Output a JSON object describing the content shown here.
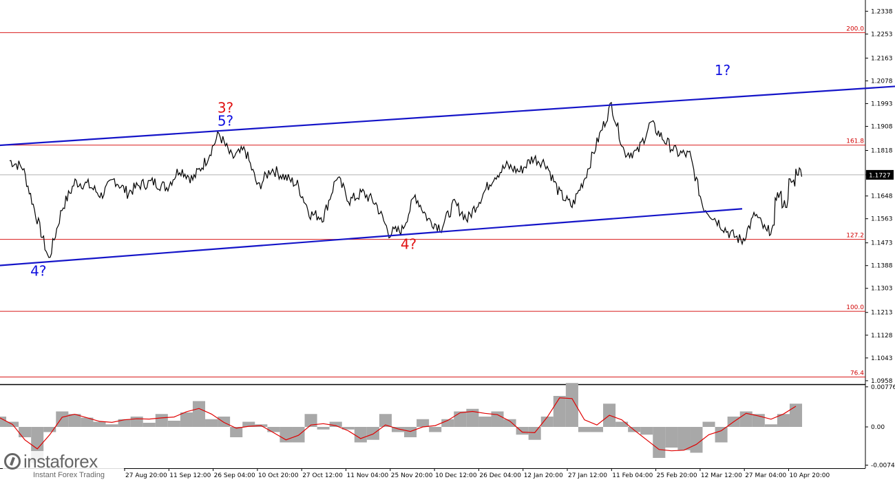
{
  "chart_data": {
    "type": "line",
    "title": "",
    "xlabel": "",
    "ylabel": "",
    "price_axis": {
      "ticks": [
        "1.2338",
        "1.2253",
        "1.2163",
        "1.2078",
        "1.1993",
        "1.1908",
        "1.1818",
        "1.1727",
        "1.1648",
        "1.1563",
        "1.1473",
        "1.1388",
        "1.1303",
        "1.1213",
        "1.1128",
        "1.1043",
        "1.0958"
      ],
      "ylim": [
        1.095,
        1.238
      ]
    },
    "time_axis": {
      "ticks": [
        "27 Aug 20:00",
        "11 Sep 12:00",
        "26 Sep 04:00",
        "10 Oct 20:00",
        "27 Oct 12:00",
        "11 Nov 04:00",
        "25 Nov 20:00",
        "10 Dec 12:00",
        "26 Dec 04:00",
        "12 Jan 20:00",
        "27 Jan 12:00",
        "11 Feb 04:00",
        "25 Feb 20:00",
        "12 Mar 12:00",
        "27 Mar 04:00",
        "10 Apr 20:00"
      ]
    },
    "current_price": "1.1727",
    "series": [
      {
        "x": [
          0,
          1,
          2,
          3,
          4,
          5,
          6,
          7,
          8,
          9,
          10,
          11,
          12,
          13,
          14,
          15,
          16,
          17,
          18,
          19,
          20,
          21,
          22,
          23,
          24,
          25,
          26,
          27,
          28,
          29,
          30,
          31,
          32,
          33,
          34,
          35,
          36,
          37,
          38,
          39,
          40,
          41,
          42,
          43,
          44,
          45,
          46,
          47,
          48,
          49,
          50,
          51,
          52,
          53,
          54,
          55,
          56,
          57,
          58
        ],
        "values": [
          1.178,
          1.1755,
          1.158,
          1.141,
          1.16,
          1.17,
          1.169,
          1.165,
          1.171,
          1.166,
          1.169,
          1.17,
          1.168,
          1.175,
          1.171,
          1.178,
          1.188,
          1.179,
          1.182,
          1.168,
          1.175,
          1.172,
          1.169,
          1.158,
          1.157,
          1.172,
          1.163,
          1.166,
          1.162,
          1.151,
          1.152,
          1.165,
          1.156,
          1.153,
          1.162,
          1.156,
          1.164,
          1.172,
          1.176,
          1.174,
          1.179,
          1.177,
          1.166,
          1.161,
          1.172,
          1.186,
          1.199,
          1.181,
          1.181,
          1.192,
          1.186,
          1.181,
          1.18,
          1.161,
          1.156,
          1.151,
          1.148,
          1.158,
          1.15
        ]
      }
    ],
    "recent_values": [
      1.152,
      1.165,
      1.162,
      1.17,
      1.174
    ],
    "fib_levels": [
      {
        "label": "200.0",
        "value": 1.2258
      },
      {
        "label": "161.8",
        "value": 1.1838
      },
      {
        "label": "127.2",
        "value": 1.1486
      },
      {
        "label": "100.0",
        "value": 1.1217
      },
      {
        "label": "76.4",
        "value": 1.0972
      }
    ],
    "channel": {
      "upper": [
        [
          -3,
          1.183
        ],
        [
          71,
          1.2068
        ]
      ],
      "lower": [
        [
          -3,
          1.138
        ],
        [
          56,
          1.16
        ]
      ]
    },
    "wave_labels": [
      {
        "text": "4?",
        "color": "blue",
        "at": [
          2.2,
          1.135
        ]
      },
      {
        "text": "3?",
        "color": "red",
        "at": [
          16.5,
          1.196
        ]
      },
      {
        "text": "5?",
        "color": "blue",
        "at": [
          16.5,
          1.191
        ]
      },
      {
        "text": "4?",
        "color": "red",
        "at": [
          30.5,
          1.145
        ]
      },
      {
        "text": "1?",
        "color": "blue",
        "at": [
          54.5,
          1.21
        ]
      }
    ],
    "oscillator": {
      "ticks": [
        "0.00776",
        "0.00",
        "-0.0074"
      ],
      "ylim": [
        -0.008,
        0.008
      ],
      "values": [
        0.002,
        0.001,
        -0.002,
        -0.007,
        -0.001,
        0.003,
        0.0025,
        0.0018,
        0.001,
        0.0005,
        0.0015,
        0.002,
        0.0008,
        0.0025,
        0.0012,
        0.0028,
        0.005,
        0.0015,
        0.002,
        -0.002,
        0.001,
        0.0005,
        -0.001,
        -0.003,
        -0.003,
        0.0025,
        -0.0005,
        0.001,
        -0.0005,
        -0.003,
        -0.0025,
        0.0025,
        -0.001,
        -0.002,
        0.0015,
        -0.001,
        0.0015,
        0.003,
        0.0035,
        0.002,
        0.003,
        0.0015,
        -0.0015,
        -0.0025,
        0.002,
        0.006,
        0.0085,
        -0.001,
        -0.001,
        0.0045,
        0.001,
        -0.001,
        -0.0015,
        -0.006,
        -0.004,
        -0.0045,
        -0.005,
        0.001,
        -0.003,
        0.002,
        0.003,
        0.0025,
        0.0005,
        0.0025,
        0.0045
      ]
    }
  },
  "colors": {
    "price_line": "#000000",
    "channel": "#1414c8",
    "fib_line": "#d81818",
    "histogram": "#a8a8a8",
    "signal": "#e00000",
    "current_price_bg": "#000000"
  },
  "watermark": {
    "brand": "instaforex",
    "tagline": "Instant Forex Trading"
  }
}
